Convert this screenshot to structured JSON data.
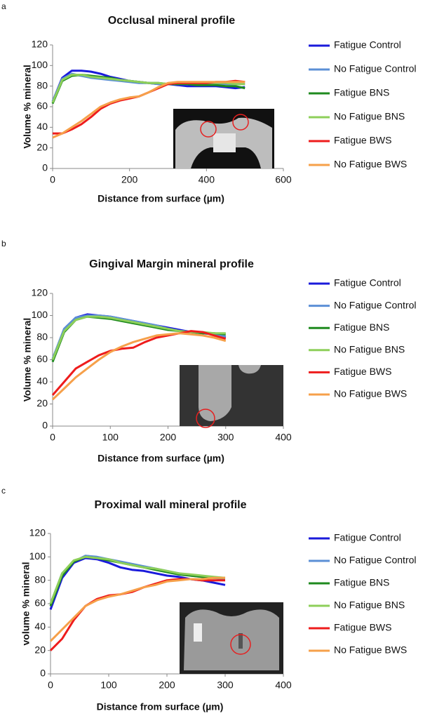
{
  "chart_data": [
    {
      "type": "line",
      "panel_label": "a",
      "title": "Occlusal mineral profile",
      "x_label": "Distance from surface (µm)",
      "y_label": "Volume % mineral",
      "x": [
        0,
        25,
        50,
        75,
        100,
        125,
        150,
        175,
        200,
        225,
        250,
        275,
        300,
        325,
        350,
        375,
        400,
        425,
        450,
        475,
        500
      ],
      "xlim": [
        0,
        600
      ],
      "xticks": [
        0,
        200,
        400,
        600
      ],
      "ylim": [
        0,
        120
      ],
      "yticks": [
        0,
        20,
        40,
        60,
        80,
        100,
        120
      ],
      "series": [
        {
          "name": "Fatigue Control",
          "color": "#1a1adb",
          "values": [
            65,
            88,
            95,
            95,
            94,
            92,
            89,
            87,
            85,
            84,
            83,
            82,
            82,
            81,
            80,
            80,
            80,
            80,
            79,
            78,
            79
          ]
        },
        {
          "name": "No Fatigue Control",
          "color": "#5b8fd6",
          "values": [
            65,
            87,
            92,
            90,
            88,
            87,
            86,
            85,
            84,
            83,
            83,
            82,
            82,
            82,
            82,
            82,
            82,
            82,
            82,
            82,
            82
          ]
        },
        {
          "name": "Fatigue BNS",
          "color": "#1e8a1e",
          "values": [
            63,
            85,
            90,
            91,
            90,
            89,
            88,
            86,
            85,
            84,
            83,
            83,
            82,
            82,
            82,
            81,
            81,
            81,
            80,
            80,
            78
          ]
        },
        {
          "name": "No Fatigue BNS",
          "color": "#8ecf5a",
          "values": [
            64,
            86,
            91,
            91,
            89,
            88,
            87,
            86,
            85,
            84,
            83,
            83,
            82,
            83,
            83,
            83,
            83,
            83,
            83,
            82,
            82
          ]
        },
        {
          "name": "Fatigue BWS",
          "color": "#ee1c1c",
          "values": [
            34,
            34,
            38,
            43,
            50,
            58,
            63,
            66,
            68,
            70,
            74,
            78,
            82,
            83,
            83,
            83,
            83,
            84,
            84,
            85,
            84
          ]
        },
        {
          "name": "No Fatigue BWS",
          "color": "#f6a04a",
          "values": [
            30,
            34,
            40,
            46,
            53,
            60,
            64,
            67,
            69,
            70,
            74,
            79,
            83,
            84,
            84,
            84,
            84,
            84,
            84,
            84,
            84
          ]
        }
      ]
    },
    {
      "type": "line",
      "panel_label": "b",
      "title": "Gingival Margin mineral profile",
      "x_label": "Distance  from surface (µm)",
      "y_label": "Volume % mineral",
      "x": [
        0,
        20,
        40,
        60,
        80,
        100,
        120,
        140,
        160,
        180,
        200,
        220,
        240,
        260,
        280,
        300
      ],
      "xlim": [
        0,
        400
      ],
      "xticks": [
        0,
        100,
        200,
        300,
        400
      ],
      "ylim": [
        0,
        120
      ],
      "yticks": [
        0,
        20,
        40,
        60,
        80,
        100,
        120
      ],
      "series": [
        {
          "name": "Fatigue Control",
          "color": "#1a1adb",
          "values": [
            60,
            88,
            98,
            101,
            100,
            99,
            97,
            95,
            93,
            91,
            89,
            87,
            85,
            84,
            83,
            80
          ]
        },
        {
          "name": "No Fatigue Control",
          "color": "#5b8fd6",
          "values": [
            61,
            88,
            98,
            100,
            100,
            99,
            97,
            95,
            93,
            91,
            88,
            86,
            85,
            84,
            83,
            81
          ]
        },
        {
          "name": "Fatigue BNS",
          "color": "#1e8a1e",
          "values": [
            58,
            85,
            96,
            99,
            98,
            97,
            95,
            93,
            91,
            89,
            87,
            86,
            85,
            84,
            84,
            83
          ]
        },
        {
          "name": "No Fatigue BNS",
          "color": "#8ecf5a",
          "values": [
            60,
            86,
            96,
            99,
            99,
            98,
            96,
            94,
            92,
            90,
            88,
            86,
            85,
            85,
            84,
            84
          ]
        },
        {
          "name": "Fatigue BWS",
          "color": "#ee1c1c",
          "values": [
            28,
            40,
            52,
            58,
            64,
            68,
            70,
            71,
            76,
            80,
            82,
            84,
            86,
            85,
            82,
            79
          ]
        },
        {
          "name": "No Fatigue BWS",
          "color": "#f6a04a",
          "values": [
            24,
            34,
            44,
            52,
            60,
            67,
            72,
            76,
            79,
            82,
            83,
            84,
            83,
            82,
            80,
            77
          ]
        }
      ]
    },
    {
      "type": "line",
      "panel_label": "c",
      "title": "Proximal wall mineral profile",
      "x_label": "Distance from surface (µm)",
      "y_label": "volume % mineral",
      "x": [
        0,
        20,
        40,
        60,
        80,
        100,
        120,
        140,
        160,
        180,
        200,
        220,
        240,
        260,
        280,
        300
      ],
      "xlim": [
        0,
        400
      ],
      "xticks": [
        0,
        100,
        200,
        300,
        400
      ],
      "ylim": [
        0,
        120
      ],
      "yticks": [
        0,
        20,
        40,
        60,
        80,
        100,
        120
      ],
      "series": [
        {
          "name": "Fatigue Control",
          "color": "#1a1adb",
          "values": [
            55,
            82,
            95,
            99,
            98,
            95,
            91,
            89,
            88,
            86,
            84,
            83,
            81,
            80,
            78,
            76
          ]
        },
        {
          "name": "No Fatigue Control",
          "color": "#5b8fd6",
          "values": [
            60,
            86,
            96,
            101,
            100,
            98,
            96,
            94,
            92,
            90,
            88,
            86,
            84,
            83,
            82,
            81
          ]
        },
        {
          "name": "Fatigue BNS",
          "color": "#1e8a1e",
          "values": [
            58,
            84,
            96,
            100,
            99,
            97,
            95,
            93,
            91,
            89,
            87,
            85,
            84,
            83,
            82,
            82
          ]
        },
        {
          "name": "No Fatigue BNS",
          "color": "#8ecf5a",
          "values": [
            60,
            86,
            97,
            100,
            99,
            98,
            95,
            93,
            91,
            90,
            88,
            86,
            85,
            84,
            83,
            82
          ]
        },
        {
          "name": "Fatigue BWS",
          "color": "#ee1c1c",
          "values": [
            20,
            30,
            46,
            58,
            64,
            67,
            68,
            70,
            74,
            77,
            80,
            81,
            81,
            80,
            80,
            80
          ]
        },
        {
          "name": "No Fatigue BWS",
          "color": "#f6a04a",
          "values": [
            28,
            38,
            48,
            58,
            63,
            66,
            68,
            71,
            74,
            76,
            79,
            80,
            81,
            81,
            82,
            82
          ]
        }
      ]
    }
  ]
}
